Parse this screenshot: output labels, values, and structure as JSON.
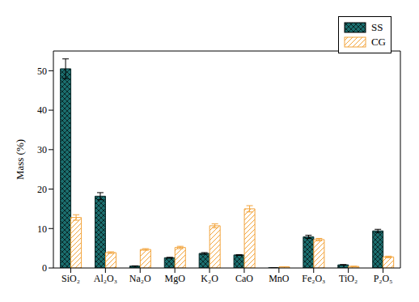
{
  "chart_data": {
    "type": "bar",
    "categories": [
      "SiO₂",
      "Al₂O₃",
      "Na₂O",
      "MgO",
      "K₂O",
      "CaO",
      "MnO",
      "Fe₂O₃",
      "TiO₂",
      "P₂O₅"
    ],
    "series": [
      {
        "name": "SS",
        "color": "#1b6e6e",
        "values": [
          50.5,
          18.2,
          0.5,
          2.6,
          3.7,
          3.3,
          0.1,
          7.9,
          0.8,
          9.4
        ],
        "errors": [
          2.5,
          0.9,
          0.05,
          0.1,
          0.2,
          0.1,
          0.01,
          0.4,
          0.05,
          0.4
        ]
      },
      {
        "name": "CG",
        "color": "#f2a33a",
        "values": [
          12.8,
          3.9,
          4.7,
          5.2,
          10.7,
          15.0,
          0.3,
          7.2,
          0.4,
          2.8
        ],
        "errors": [
          0.7,
          0.2,
          0.2,
          0.3,
          0.5,
          0.8,
          0.02,
          0.3,
          0.02,
          0.2
        ]
      }
    ],
    "y_label": "Mass (%)",
    "ylim": [
      0,
      55
    ],
    "yticks": [
      0,
      10,
      20,
      30,
      40,
      50
    ],
    "grid": false,
    "legend": "upper right"
  }
}
